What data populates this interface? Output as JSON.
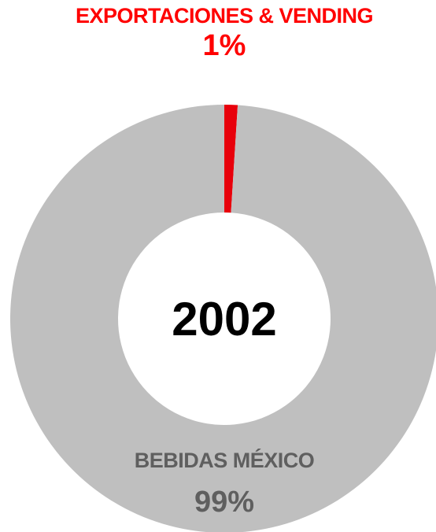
{
  "chart_data": {
    "type": "pie",
    "donut": true,
    "center_label": "2002",
    "categories": [
      "EXPORTACIONES & VENDING",
      "BEBIDAS MÉXICO"
    ],
    "values": [
      1,
      99
    ],
    "value_labels": [
      "1%",
      "99%"
    ],
    "colors": [
      "#e8000b",
      "#bfbfbf"
    ],
    "label_colors": [
      "#ff0000",
      "#5f5f5f"
    ]
  }
}
